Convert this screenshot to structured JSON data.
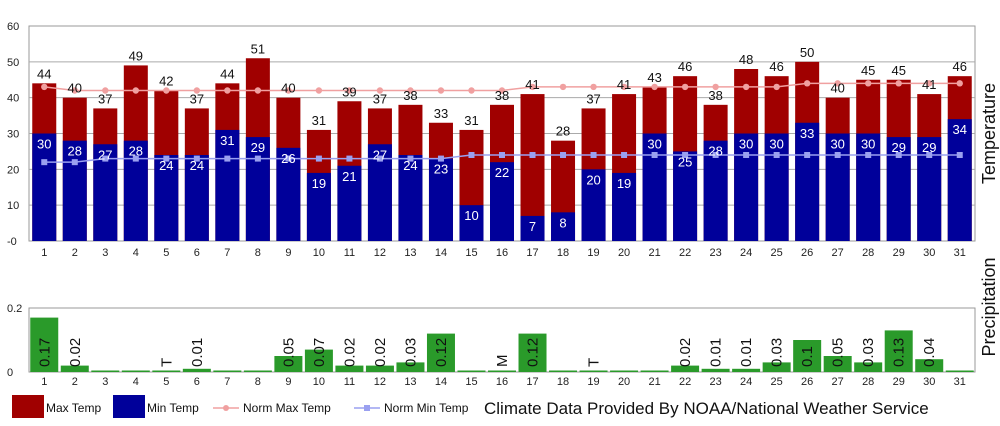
{
  "chart_data": {
    "type": "bar",
    "categories": [
      "1",
      "2",
      "3",
      "4",
      "5",
      "6",
      "7",
      "8",
      "9",
      "10",
      "11",
      "12",
      "13",
      "14",
      "15",
      "16",
      "17",
      "18",
      "19",
      "20",
      "21",
      "22",
      "23",
      "24",
      "25",
      "26",
      "27",
      "28",
      "29",
      "30",
      "31"
    ],
    "temperature": {
      "ylabel": "Temperature",
      "ylim": [
        0,
        60
      ],
      "yticks": [
        "-0",
        "10",
        "20",
        "30",
        "40",
        "50",
        "60"
      ],
      "grid": true,
      "series": [
        {
          "name": "Max Temp",
          "kind": "bar",
          "color": "#a00000",
          "values": [
            44,
            40,
            37,
            49,
            42,
            37,
            44,
            51,
            40,
            31,
            39,
            37,
            38,
            33,
            31,
            38,
            41,
            28,
            37,
            41,
            43,
            46,
            38,
            48,
            46,
            50,
            40,
            45,
            45,
            41,
            46
          ]
        },
        {
          "name": "Min Temp",
          "kind": "bar",
          "color": "#00009a",
          "values": [
            30,
            28,
            27,
            28,
            24,
            24,
            31,
            29,
            26,
            19,
            21,
            27,
            24,
            23,
            10,
            22,
            7,
            8,
            20,
            19,
            30,
            25,
            28,
            30,
            30,
            33,
            30,
            30,
            29,
            29,
            34
          ]
        },
        {
          "name": "Norm Max Temp",
          "kind": "line",
          "color": "#f0a0a0",
          "values": [
            43,
            42,
            42,
            42,
            42,
            42,
            42,
            42,
            42,
            42,
            42,
            42,
            42,
            42,
            42,
            42,
            43,
            43,
            43,
            43,
            43,
            43,
            43,
            43,
            43,
            44,
            44,
            44,
            44,
            44,
            44
          ]
        },
        {
          "name": "Norm Min Temp",
          "kind": "line",
          "color": "#9aa0f0",
          "values": [
            22,
            22,
            23,
            23,
            23,
            23,
            23,
            23,
            23,
            23,
            23,
            23,
            23,
            23,
            24,
            24,
            24,
            24,
            24,
            24,
            24,
            24,
            24,
            24,
            24,
            24,
            24,
            24,
            24,
            24,
            24
          ]
        }
      ]
    },
    "precipitation": {
      "ylabel": "Precipitation",
      "ylim": [
        0,
        0.2
      ],
      "yticks": [
        "0",
        "0.2"
      ],
      "series": [
        {
          "name": "Precipitation",
          "kind": "bar",
          "color": "#2a9a2a",
          "values": [
            0.17,
            0.02,
            0,
            0,
            0,
            0.01,
            0,
            0,
            0.05,
            0.07,
            0.02,
            0.02,
            0.03,
            0.12,
            0,
            0,
            0.12,
            0,
            0,
            0,
            0,
            0.02,
            0.01,
            0.01,
            0.03,
            0.1,
            0.05,
            0.03,
            0.13,
            0.04,
            0
          ],
          "labels": [
            "0.17",
            "0.02",
            "",
            "",
            "T",
            "0.01",
            "",
            "",
            "0.05",
            "0.07",
            "0.02",
            "0.02",
            "0.03",
            "0.12",
            "",
            "M",
            "0.12",
            "",
            "T",
            "",
            "",
            "0.02",
            "0.01",
            "0.01",
            "0.03",
            "0.1",
            "0.05",
            "0.03",
            "0.13",
            "0.04",
            ""
          ]
        }
      ]
    },
    "legend": {
      "position": "bottom",
      "items": [
        {
          "label": "Max Temp",
          "kind": "box",
          "color": "#a00000"
        },
        {
          "label": "Min Temp",
          "kind": "box",
          "color": "#00009a"
        },
        {
          "label": "Norm Max Temp",
          "kind": "line",
          "color": "#f0a0a0"
        },
        {
          "label": "Norm Min Temp",
          "kind": "line",
          "color": "#9aa0f0"
        }
      ]
    },
    "credit": "Climate Data Provided By NOAA/National Weather Service"
  }
}
